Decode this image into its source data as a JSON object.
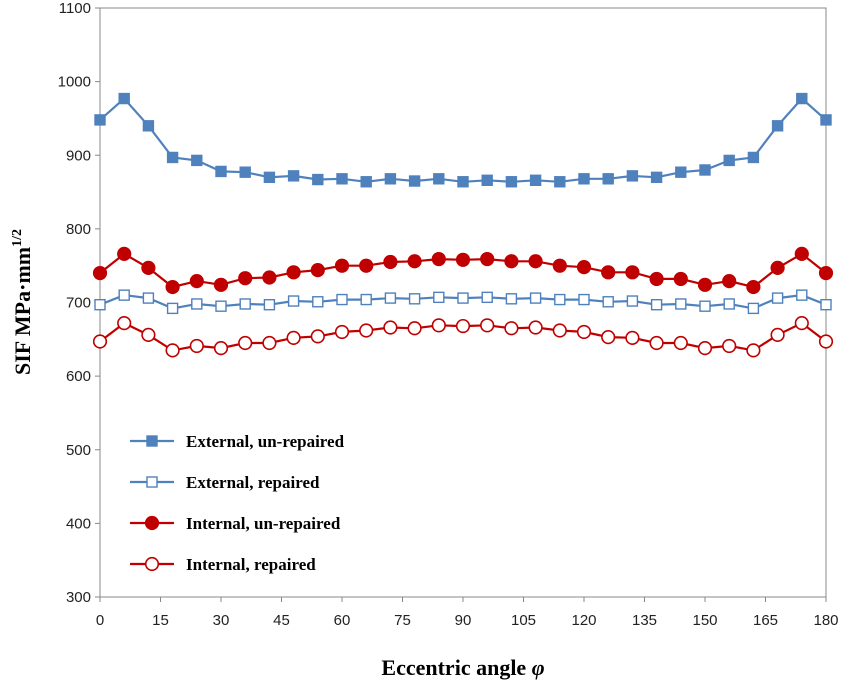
{
  "chart_data": {
    "type": "line",
    "title": "",
    "xlabel": "Eccentric angle",
    "xlabel_symbol": "φ",
    "ylabel": "SIF MPa·mm",
    "ylabel_sup": "1/2",
    "xlim": [
      0,
      180
    ],
    "ylim": [
      300,
      1100
    ],
    "xticks": [
      0,
      15,
      30,
      45,
      60,
      75,
      90,
      105,
      120,
      135,
      150,
      165,
      180
    ],
    "yticks": [
      300,
      400,
      500,
      600,
      700,
      800,
      900,
      1000,
      1100
    ],
    "grid": false,
    "legend_position": "lower-left",
    "x": [
      0,
      6,
      12,
      18,
      24,
      30,
      36,
      42,
      48,
      54,
      60,
      66,
      72,
      78,
      84,
      90,
      96,
      102,
      108,
      114,
      120,
      126,
      132,
      138,
      144,
      150,
      156,
      162,
      168,
      174,
      180
    ],
    "series": [
      {
        "name": "External, un-repaired",
        "color": "#4f81bd",
        "marker": "square-filled",
        "values": [
          948,
          977,
          940,
          897,
          893,
          878,
          877,
          870,
          872,
          867,
          868,
          864,
          868,
          865,
          868,
          864,
          866,
          864,
          866,
          864,
          868,
          868,
          872,
          870,
          877,
          880,
          893,
          897,
          940,
          977,
          948
        ]
      },
      {
        "name": "External, repaired",
        "color": "#4f81bd",
        "marker": "square-open",
        "values": [
          697,
          710,
          706,
          692,
          698,
          695,
          698,
          697,
          702,
          701,
          704,
          704,
          706,
          705,
          707,
          706,
          707,
          705,
          706,
          704,
          704,
          701,
          702,
          697,
          698,
          695,
          698,
          692,
          706,
          710,
          697
        ]
      },
      {
        "name": "Internal, un-repaired",
        "color": "#c00000",
        "marker": "circle-filled",
        "values": [
          740,
          766,
          747,
          721,
          729,
          724,
          733,
          734,
          741,
          744,
          750,
          750,
          755,
          756,
          759,
          758,
          759,
          756,
          756,
          750,
          748,
          741,
          741,
          732,
          732,
          724,
          729,
          721,
          747,
          766,
          740
        ]
      },
      {
        "name": "Internal, repaired",
        "color": "#c00000",
        "marker": "circle-open",
        "values": [
          647,
          672,
          656,
          635,
          641,
          638,
          645,
          645,
          652,
          654,
          660,
          662,
          666,
          665,
          669,
          668,
          669,
          665,
          666,
          662,
          660,
          653,
          652,
          645,
          645,
          638,
          641,
          635,
          656,
          672,
          647
        ]
      }
    ]
  }
}
